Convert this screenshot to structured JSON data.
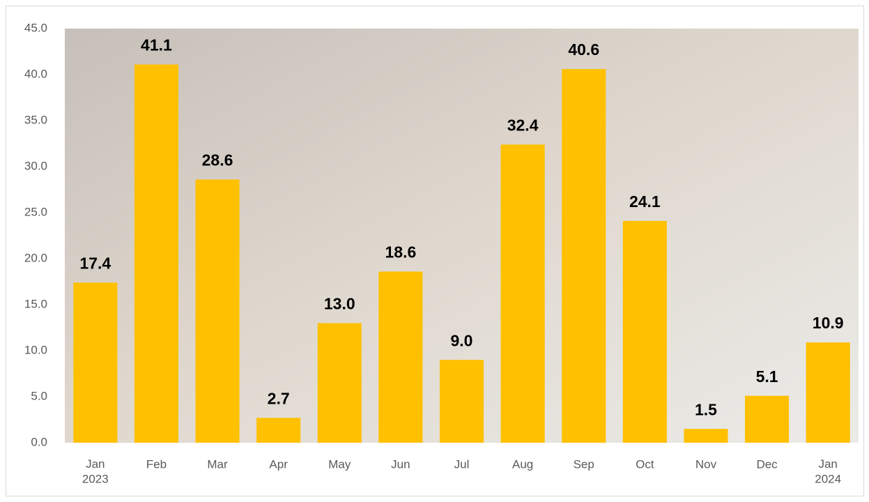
{
  "chart_data": {
    "type": "bar",
    "categories": [
      "Jan\n2023",
      "Feb",
      "Mar",
      "Apr",
      "May",
      "Jun",
      "Jul",
      "Aug",
      "Sep",
      "Oct",
      "Nov",
      "Dec",
      "Jan\n2024"
    ],
    "values": [
      17.4,
      41.1,
      28.6,
      2.7,
      13.0,
      18.6,
      9.0,
      32.4,
      40.6,
      24.1,
      1.5,
      5.1,
      10.9
    ],
    "value_labels": [
      "17.4",
      "41.1",
      "28.6",
      "2.7",
      "13.0",
      "18.6",
      "9.0",
      "32.4",
      "40.6",
      "24.1",
      "1.5",
      "5.1",
      "10.9"
    ],
    "color": "#ffc000",
    "ylim": [
      0,
      45
    ],
    "yticks": [
      {
        "value": 0,
        "label": "0.0"
      },
      {
        "value": 5,
        "label": "5.0"
      },
      {
        "value": 10,
        "label": "10.0"
      },
      {
        "value": 15,
        "label": "15.0"
      },
      {
        "value": 20,
        "label": "20.0"
      },
      {
        "value": 25,
        "label": "25.0"
      },
      {
        "value": 30,
        "label": "30.0"
      },
      {
        "value": 35,
        "label": "35.0"
      },
      {
        "value": 40,
        "label": "40.0"
      },
      {
        "value": 45,
        "label": "45.0"
      }
    ]
  }
}
